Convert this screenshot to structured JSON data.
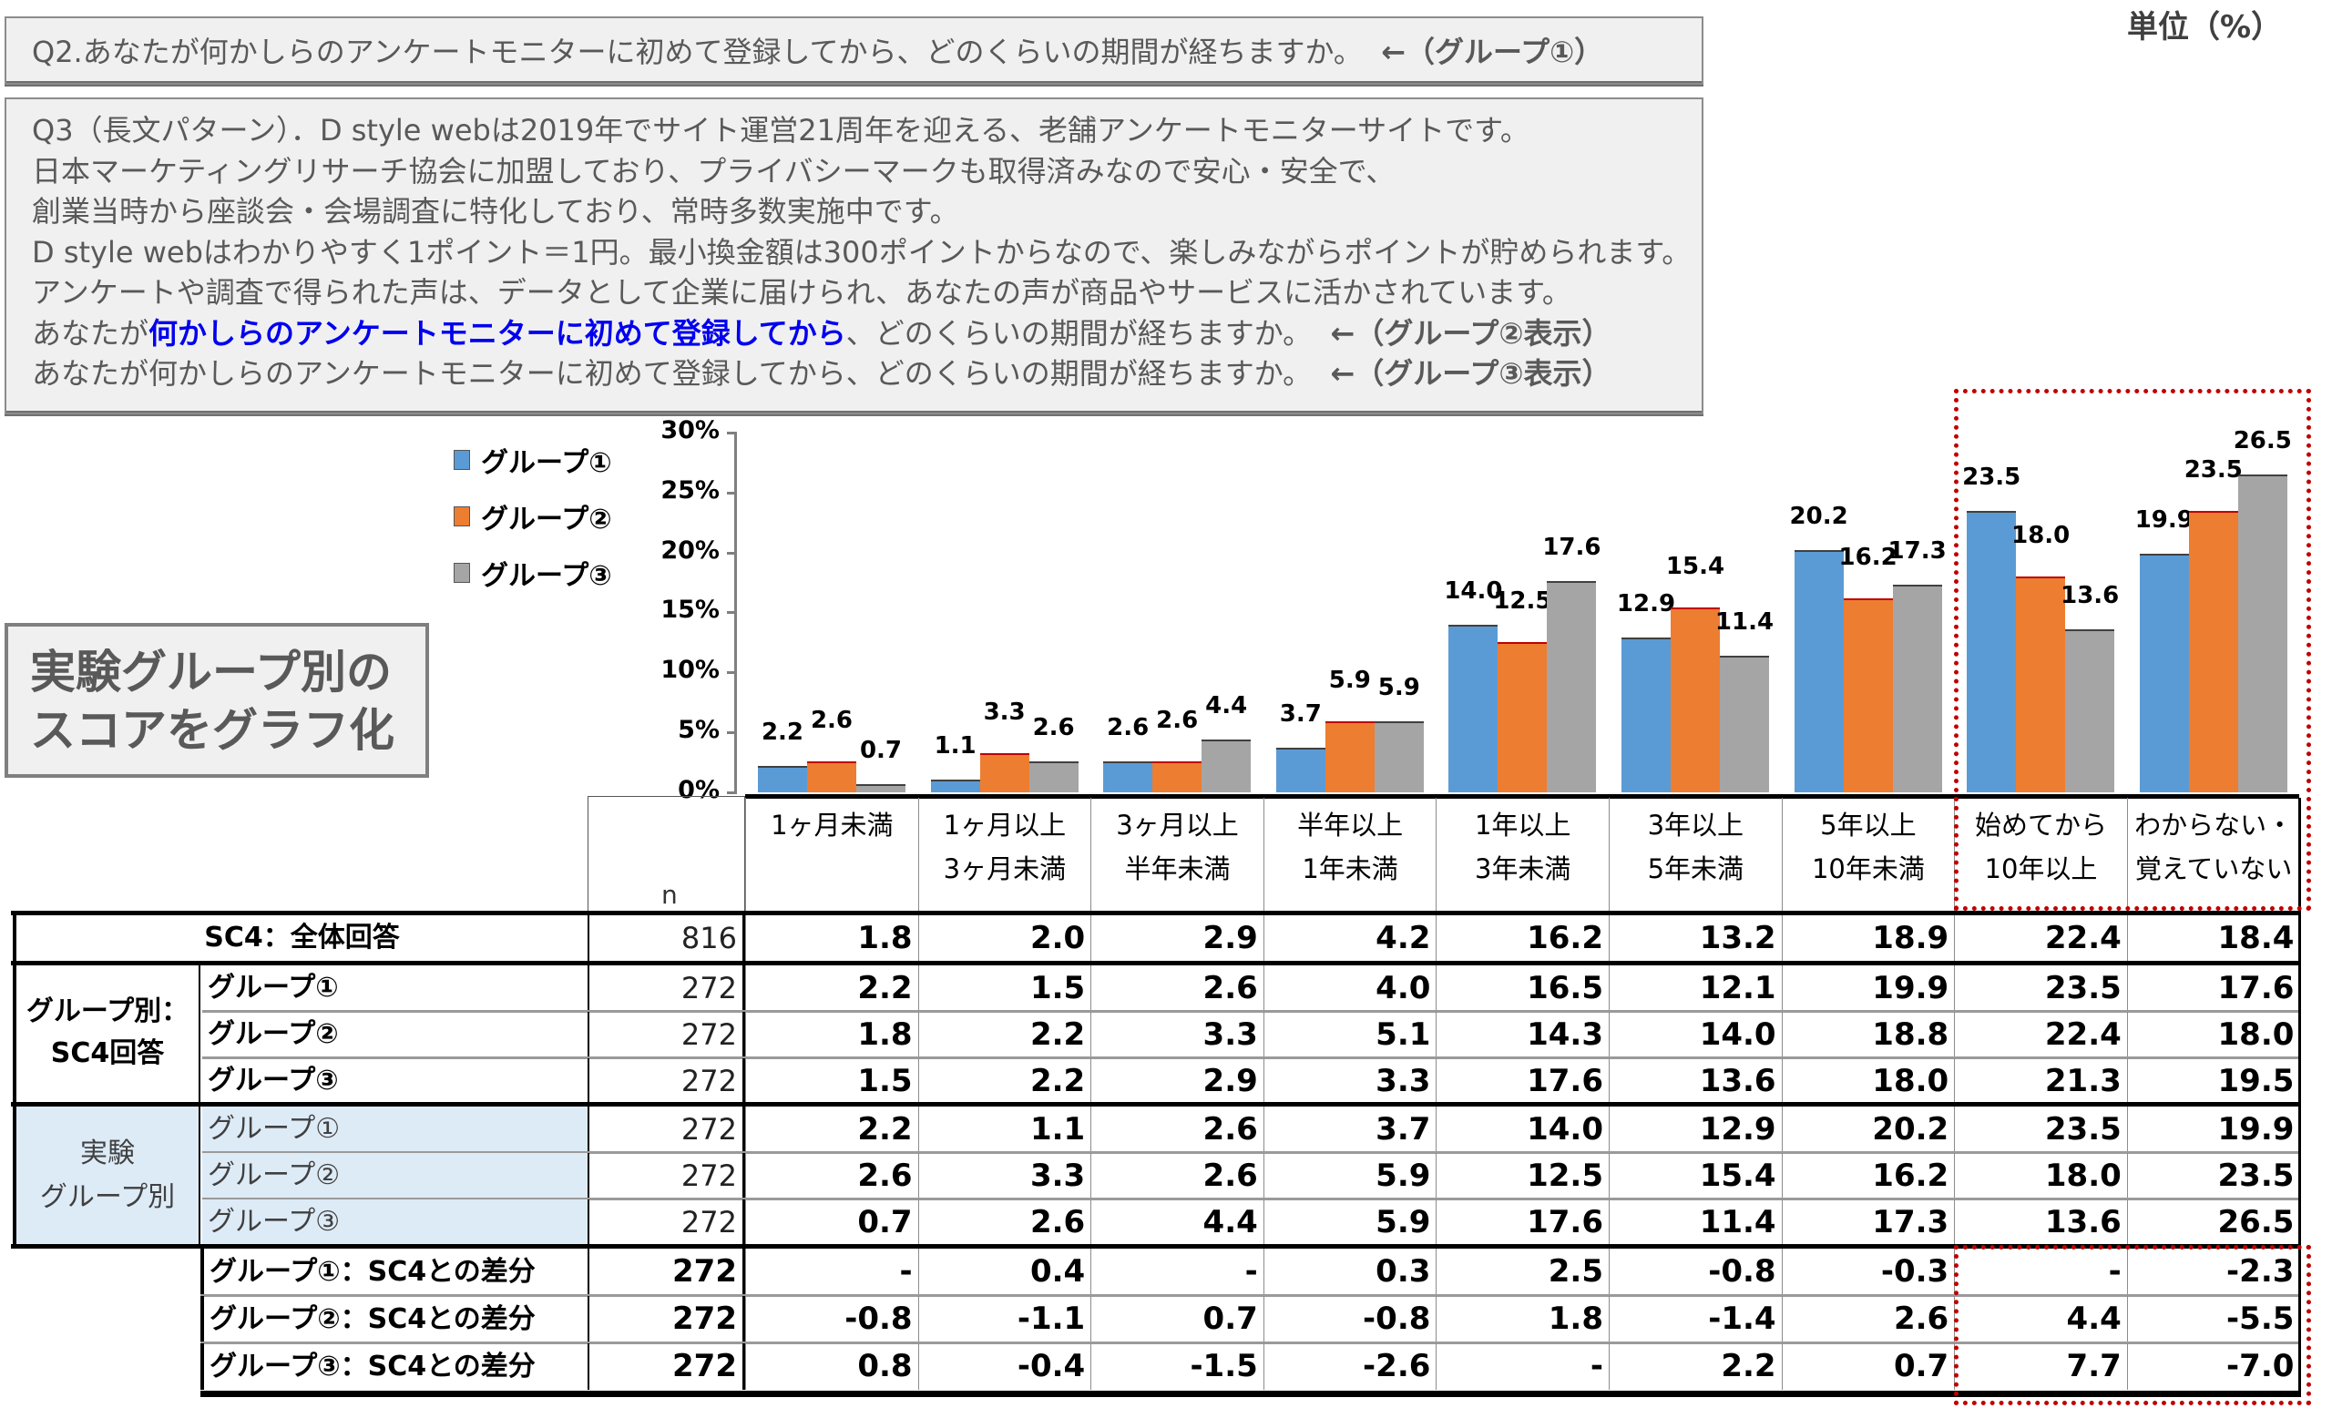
{
  "unit_label": "単位（%）",
  "q2": {
    "text": "Q2.あなたが何かしらのアンケートモニターに初めて登録してから、どのくらいの期間が経ちますか。",
    "tag": "←（グループ①）"
  },
  "q3": {
    "line1": "Q3（長文パターン）．D style webは2019年でサイト運営21周年を迎える、老舗アンケートモニターサイトです。",
    "line2": "日本マーケティングリサーチ協会に加盟しており、プライバシーマークも取得済みなので安心・安全で、",
    "line3": "創業当時から座談会・会場調査に特化しており、常時多数実施中です。",
    "line4": "D style webはわかりやすく1ポイント＝1円。最小換金額は300ポイントからなので、楽しみながらポイントが貯められます。",
    "line5": "アンケートや調査で得られた声は、データとして企業に届けられ、あなたの声が商品やサービスに活かされています。",
    "line6_pre": "あなたが",
    "line6_highlight": "何かしらのアンケートモニターに初めて登録してから",
    "line6_post": "、どのくらいの期間が経ちますか。",
    "line6_tag": "←（グループ②表示）",
    "line7": "あなたが何かしらのアンケートモニターに初めて登録してから、どのくらいの期間が経ちますか。",
    "line7_tag": "←（グループ③表示）"
  },
  "callout": {
    "line1": "実験グループ別の",
    "line2": "スコアをグラフ化"
  },
  "colors": {
    "group1": "#5b9bd5",
    "group2": "#ed7d31",
    "group3": "#a5a5a5",
    "highlight_box": "#c00000",
    "highlight_text": "#0000ee"
  },
  "chart_data": {
    "type": "bar",
    "title": "",
    "xlabel": "",
    "ylabel": "",
    "ylim": [
      0,
      30
    ],
    "yticks": [
      "0%",
      "5%",
      "10%",
      "15%",
      "20%",
      "25%",
      "30%"
    ],
    "legend_position": "left",
    "categories": [
      "1ヶ月未満",
      "1ヶ月以上3ヶ月未満",
      "3ヶ月以上半年未満",
      "半年以上1年未満",
      "1年以上3年未満",
      "3年以上5年未満",
      "5年以上10年未満",
      "始めてから10年以上",
      "わからない・覚えていない"
    ],
    "series": [
      {
        "name": "グループ①",
        "values": [
          2.2,
          1.1,
          2.6,
          3.7,
          14.0,
          12.9,
          20.2,
          23.5,
          19.9
        ]
      },
      {
        "name": "グループ②",
        "values": [
          2.6,
          3.3,
          2.6,
          5.9,
          12.5,
          15.4,
          16.2,
          18.0,
          23.5
        ]
      },
      {
        "name": "グループ③",
        "values": [
          0.7,
          2.6,
          4.4,
          5.9,
          17.6,
          11.4,
          17.3,
          13.6,
          26.5
        ]
      }
    ],
    "data_labels": [
      [
        "2.2",
        "1.1",
        "2.6",
        "3.7",
        "14.0",
        "12.9",
        "20.2",
        "23.5",
        "19.9"
      ],
      [
        "2.6",
        "3.3",
        "2.6",
        "5.9",
        "12.5",
        "15.4",
        "16.2",
        "18.0",
        "23.5"
      ],
      [
        "0.7",
        "2.6",
        "4.4",
        "5.9",
        "17.6",
        "11.4",
        "17.3",
        "13.6",
        "26.5"
      ]
    ]
  },
  "table": {
    "n_header": "n",
    "columns": [
      {
        "line1": "1ヶ月未満",
        "line2": ""
      },
      {
        "line1": "1ヶ月以上",
        "line2": "3ヶ月未満"
      },
      {
        "line1": "3ヶ月以上",
        "line2": "半年未満"
      },
      {
        "line1": "半年以上",
        "line2": "1年未満"
      },
      {
        "line1": "1年以上",
        "line2": "3年未満"
      },
      {
        "line1": "3年以上",
        "line2": "5年未満"
      },
      {
        "line1": "5年以上",
        "line2": "10年未満"
      },
      {
        "line1": "始めてから",
        "line2": "10年以上"
      },
      {
        "line1": "わからない・",
        "line2": "覚えていない"
      }
    ],
    "total_row": {
      "label": "SC4：全体回答",
      "n": "816",
      "values": [
        "1.8",
        "2.0",
        "2.9",
        "4.2",
        "16.2",
        "13.2",
        "18.9",
        "22.4",
        "18.4"
      ]
    },
    "sc4_group_label_1": "グループ別：",
    "sc4_group_label_2": "SC4回答",
    "sc4_rows": [
      {
        "label": "グループ①",
        "n": "272",
        "values": [
          "2.2",
          "1.5",
          "2.6",
          "4.0",
          "16.5",
          "12.1",
          "19.9",
          "23.5",
          "17.6"
        ]
      },
      {
        "label": "グループ②",
        "n": "272",
        "values": [
          "1.8",
          "2.2",
          "3.3",
          "5.1",
          "14.3",
          "14.0",
          "18.8",
          "22.4",
          "18.0"
        ]
      },
      {
        "label": "グループ③",
        "n": "272",
        "values": [
          "1.5",
          "2.2",
          "2.9",
          "3.3",
          "17.6",
          "13.6",
          "18.0",
          "21.3",
          "19.5"
        ]
      }
    ],
    "exp_group_label_1": "実験",
    "exp_group_label_2": "グループ別",
    "exp_rows": [
      {
        "label": "グループ①",
        "n": "272",
        "values": [
          "2.2",
          "1.1",
          "2.6",
          "3.7",
          "14.0",
          "12.9",
          "20.2",
          "23.5",
          "19.9"
        ]
      },
      {
        "label": "グループ②",
        "n": "272",
        "values": [
          "2.6",
          "3.3",
          "2.6",
          "5.9",
          "12.5",
          "15.4",
          "16.2",
          "18.0",
          "23.5"
        ]
      },
      {
        "label": "グループ③",
        "n": "272",
        "values": [
          "0.7",
          "2.6",
          "4.4",
          "5.9",
          "17.6",
          "11.4",
          "17.3",
          "13.6",
          "26.5"
        ]
      }
    ],
    "diff_rows": [
      {
        "label": "グループ①：SC4との差分",
        "n": "272",
        "values": [
          "-",
          "0.4",
          "-",
          "0.3",
          "2.5",
          "-0.8",
          "-0.3",
          "-",
          "-2.3"
        ]
      },
      {
        "label": "グループ②：SC4との差分",
        "n": "272",
        "values": [
          "-0.8",
          "-1.1",
          "0.7",
          "-0.8",
          "1.8",
          "-1.4",
          "2.6",
          "4.4",
          "-5.5"
        ]
      },
      {
        "label": "グループ③：SC4との差分",
        "n": "272",
        "values": [
          "0.8",
          "-0.4",
          "-1.5",
          "-2.6",
          "-",
          "2.2",
          "0.7",
          "7.7",
          "-7.0"
        ]
      }
    ]
  }
}
